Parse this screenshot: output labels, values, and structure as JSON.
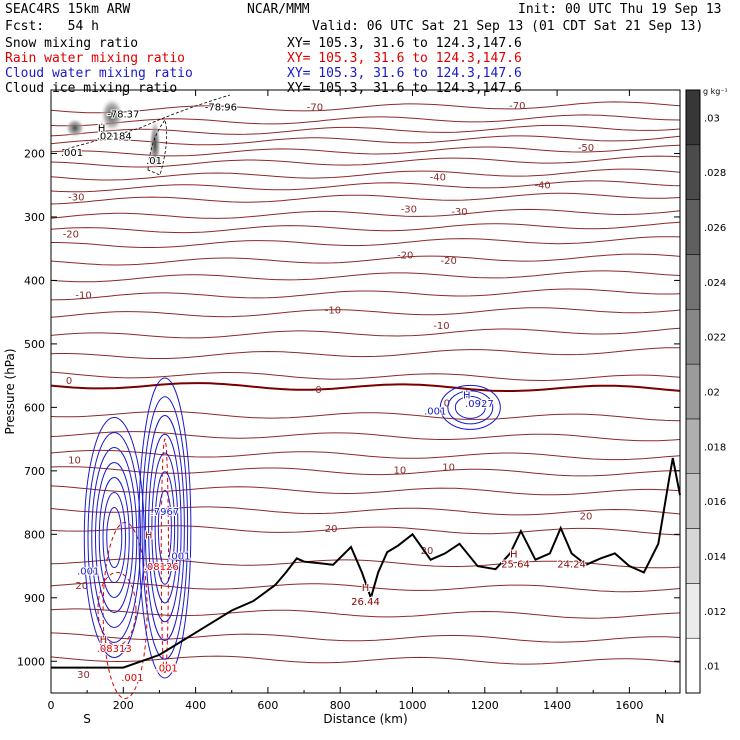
{
  "header": {
    "model": "SEAC4RS 15km ARW",
    "org": "NCAR/MMM",
    "init": "Init: 00 UTC Thu 19 Sep 13",
    "fcst": "Fcst:   54 h",
    "valid": "Valid: 06 UTC Sat 21 Sep 13 (01 CDT Sat 21 Sep 13)",
    "fields": [
      {
        "name": "Snow mixing ratio",
        "xy": "XY= 105.3, 31.6 to 124.3,147.6",
        "color": "#000000"
      },
      {
        "name": "Rain water mixing ratio",
        "xy": "XY= 105.3, 31.6 to 124.3,147.6",
        "color": "#e00000"
      },
      {
        "name": "Cloud water mixing ratio",
        "xy": "XY= 105.3, 31.6 to 124.3,147.6",
        "color": "#1a1acc"
      },
      {
        "name": "Cloud ice mixing ratio",
        "xy": "XY= 105.3, 31.6 to 124.3,147.6",
        "color": "#000000"
      }
    ]
  },
  "chart_data": {
    "type": "contour",
    "xlabel": "Distance (km)",
    "ylabel": "Pressure (hPa)",
    "xlim": [
      0,
      1740
    ],
    "ylim": [
      1050,
      100
    ],
    "x_ticks": [
      0,
      200,
      400,
      600,
      800,
      1000,
      1200,
      1400,
      1600
    ],
    "y_ticks": [
      200,
      300,
      400,
      500,
      600,
      700,
      800,
      900,
      1000
    ],
    "x_end_labels": {
      "left": "S",
      "right": "N"
    },
    "colorbar": {
      "unit": "g kg⁻¹",
      "ticks": [
        ".01",
        ".012",
        ".014",
        ".016",
        ".018",
        ".02",
        ".022",
        ".024",
        ".026",
        ".028",
        ".03"
      ]
    },
    "temperature_isotherms_C": [
      {
        "label": "-70",
        "value": -70
      },
      {
        "label": "-50",
        "value": -50
      },
      {
        "label": "-40",
        "value": -40
      },
      {
        "label": "-30",
        "value": -30
      },
      {
        "label": "-20",
        "value": -20
      },
      {
        "label": "-10",
        "value": -10
      },
      {
        "label": "0",
        "value": 0
      },
      {
        "label": "10",
        "value": 10
      },
      {
        "label": "20",
        "value": 20
      },
      {
        "label": "30",
        "value": 30
      }
    ],
    "terrain_profile": [
      [
        0,
        1010
      ],
      [
        100,
        1010
      ],
      [
        200,
        1010
      ],
      [
        300,
        990
      ],
      [
        400,
        955
      ],
      [
        500,
        920
      ],
      [
        560,
        905
      ],
      [
        620,
        880
      ],
      [
        650,
        860
      ],
      [
        680,
        838
      ],
      [
        700,
        843
      ],
      [
        750,
        846
      ],
      [
        780,
        848
      ],
      [
        830,
        820
      ],
      [
        860,
        860
      ],
      [
        885,
        900
      ],
      [
        905,
        860
      ],
      [
        930,
        828
      ],
      [
        960,
        818
      ],
      [
        1000,
        800
      ],
      [
        1050,
        840
      ],
      [
        1090,
        830
      ],
      [
        1130,
        815
      ],
      [
        1180,
        850
      ],
      [
        1230,
        855
      ],
      [
        1270,
        830
      ],
      [
        1300,
        795
      ],
      [
        1340,
        840
      ],
      [
        1380,
        830
      ],
      [
        1410,
        790
      ],
      [
        1440,
        830
      ],
      [
        1480,
        848
      ],
      [
        1520,
        838
      ],
      [
        1560,
        830
      ],
      [
        1600,
        850
      ],
      [
        1640,
        860
      ],
      [
        1680,
        815
      ],
      [
        1710,
        712
      ],
      [
        1720,
        680
      ],
      [
        1740,
        738
      ]
    ],
    "labels": [
      {
        "text": "-78.96",
        "x": 470,
        "p": 126
      },
      {
        "text": "-78.37",
        "x": 200,
        "p": 137
      },
      {
        "text": "H",
        "x": 140,
        "p": 159
      },
      {
        "text": ".02184",
        "x": 175,
        "p": 172
      },
      {
        "text": ".001",
        "x": 58,
        "p": 198
      },
      {
        "text": ".01",
        "x": 285,
        "p": 210
      },
      {
        "text": "H",
        "x": 1150,
        "p": 580
      },
      {
        "text": ".0927",
        "x": 1185,
        "p": 593
      },
      {
        "text": ".001",
        "x": 1063,
        "p": 605
      },
      {
        "text": ".7967",
        "x": 315,
        "p": 763
      },
      {
        "text": "H",
        "x": 270,
        "p": 800
      },
      {
        "text": ".001",
        "x": 355,
        "p": 833
      },
      {
        "text": ".08126",
        "x": 305,
        "p": 850
      },
      {
        "text": ".001",
        "x": 103,
        "p": 857
      },
      {
        "text": "H",
        "x": 870,
        "p": 883
      },
      {
        "text": "26.44",
        "x": 870,
        "p": 905
      },
      {
        "text": "H",
        "x": 1280,
        "p": 830
      },
      {
        "text": "25.64",
        "x": 1285,
        "p": 846
      },
      {
        "text": "24.24",
        "x": 1440,
        "p": 846
      },
      {
        "text": "H",
        "x": 145,
        "p": 965
      },
      {
        "text": ".08313",
        "x": 175,
        "p": 979
      },
      {
        "text": ".001",
        "x": 225,
        "p": 1025
      },
      {
        "text": ".001",
        "x": 320,
        "p": 1010
      }
    ]
  }
}
